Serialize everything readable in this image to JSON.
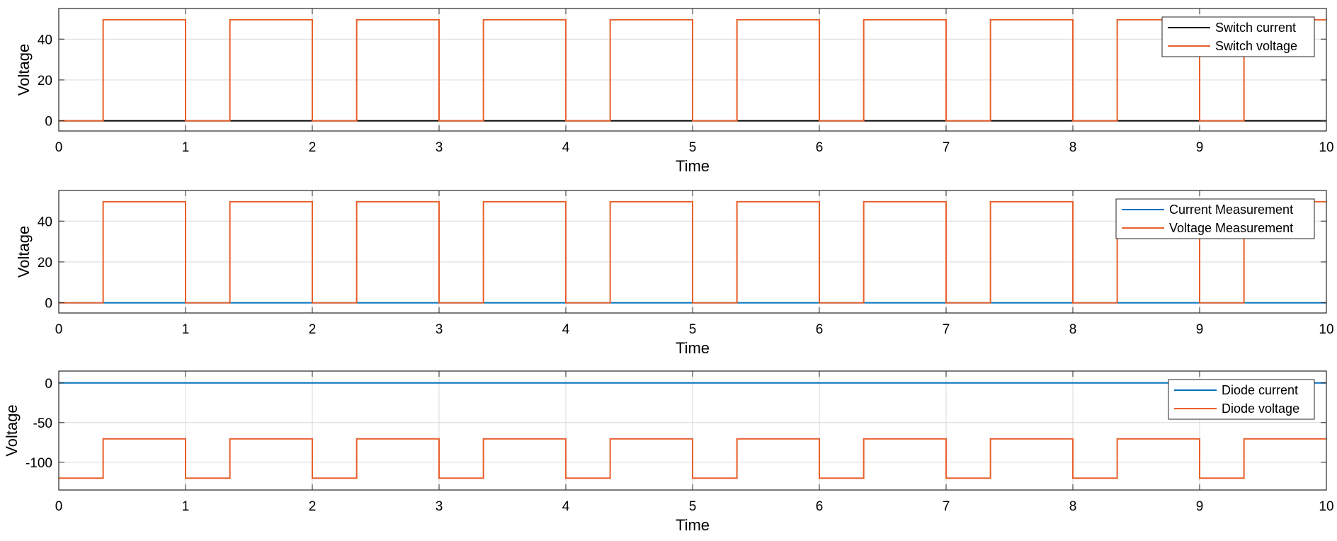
{
  "chart_data": [
    {
      "type": "line",
      "xlabel": "Time",
      "ylabel": "Voltage",
      "xlim": [
        0,
        10
      ],
      "ylim": [
        -5,
        55
      ],
      "x_ticks": [
        0,
        1,
        2,
        3,
        4,
        5,
        6,
        7,
        8,
        9,
        10
      ],
      "y_ticks": [
        0,
        20,
        40
      ],
      "grid": true,
      "legend_position": "top-right",
      "series": [
        {
          "name": "Switch current",
          "color": "#000000",
          "x": [
            0,
            10
          ],
          "y": [
            0,
            0
          ]
        },
        {
          "name": "Switch voltage",
          "color": "#e8602c",
          "x": [
            0,
            0.35,
            0.35,
            1,
            1,
            1.35,
            1.35,
            2,
            2,
            2.35,
            2.35,
            3,
            3,
            3.35,
            3.35,
            4,
            4,
            4.35,
            4.35,
            5,
            5,
            5.35,
            5.35,
            6,
            6,
            6.35,
            6.35,
            7,
            7,
            7.35,
            7.35,
            8,
            8,
            8.35,
            8.35,
            9,
            9,
            9.35,
            9.35,
            10
          ],
          "y": [
            0,
            0,
            49.5,
            49.5,
            0,
            0,
            49.5,
            49.5,
            0,
            0,
            49.5,
            49.5,
            0,
            0,
            49.5,
            49.5,
            0,
            0,
            49.5,
            49.5,
            0,
            0,
            49.5,
            49.5,
            0,
            0,
            49.5,
            49.5,
            0,
            0,
            49.5,
            49.5,
            0,
            0,
            49.5,
            49.5,
            0,
            0,
            49.5,
            49.5
          ]
        }
      ]
    },
    {
      "type": "line",
      "xlabel": "Time",
      "ylabel": "Voltage",
      "xlim": [
        0,
        10
      ],
      "ylim": [
        -5,
        55
      ],
      "x_ticks": [
        0,
        1,
        2,
        3,
        4,
        5,
        6,
        7,
        8,
        9,
        10
      ],
      "y_ticks": [
        0,
        20,
        40
      ],
      "grid": true,
      "legend_position": "top-right",
      "series": [
        {
          "name": "Current Measurement",
          "color": "#0072bd",
          "x": [
            0,
            10
          ],
          "y": [
            0,
            0
          ]
        },
        {
          "name": "Voltage Measurement",
          "color": "#e8602c",
          "x": [
            0,
            0.35,
            0.35,
            1,
            1,
            1.35,
            1.35,
            2,
            2,
            2.35,
            2.35,
            3,
            3,
            3.35,
            3.35,
            4,
            4,
            4.35,
            4.35,
            5,
            5,
            5.35,
            5.35,
            6,
            6,
            6.35,
            6.35,
            7,
            7,
            7.35,
            7.35,
            8,
            8,
            8.35,
            8.35,
            9,
            9,
            9.35,
            9.35,
            10
          ],
          "y": [
            0,
            0,
            49.5,
            49.5,
            0,
            0,
            49.5,
            49.5,
            0,
            0,
            49.5,
            49.5,
            0,
            0,
            49.5,
            49.5,
            0,
            0,
            49.5,
            49.5,
            0,
            0,
            49.5,
            49.5,
            0,
            0,
            49.5,
            49.5,
            0,
            0,
            49.5,
            49.5,
            0,
            0,
            49.5,
            49.5,
            0,
            0,
            49.5,
            49.5
          ]
        }
      ]
    },
    {
      "type": "line",
      "xlabel": "Time",
      "ylabel": "Voltage",
      "xlim": [
        0,
        10
      ],
      "ylim": [
        -135,
        15
      ],
      "x_ticks": [
        0,
        1,
        2,
        3,
        4,
        5,
        6,
        7,
        8,
        9,
        10
      ],
      "y_ticks": [
        0,
        -50,
        -100
      ],
      "grid": true,
      "legend_position": "top-right",
      "series": [
        {
          "name": "Diode current",
          "color": "#0072bd",
          "x": [
            0,
            10
          ],
          "y": [
            0,
            0
          ]
        },
        {
          "name": "Diode voltage",
          "color": "#e8602c",
          "x": [
            0,
            0.35,
            0.35,
            1,
            1,
            1.35,
            1.35,
            2,
            2,
            2.35,
            2.35,
            3,
            3,
            3.35,
            3.35,
            4,
            4,
            4.35,
            4.35,
            5,
            5,
            5.35,
            5.35,
            6,
            6,
            6.35,
            6.35,
            7,
            7,
            7.35,
            7.35,
            8,
            8,
            8.35,
            8.35,
            9,
            9,
            9.35,
            9.35,
            10
          ],
          "y": [
            -120,
            -120,
            -70.5,
            -70.5,
            -120,
            -120,
            -70.5,
            -70.5,
            -120,
            -120,
            -70.5,
            -70.5,
            -120,
            -120,
            -70.5,
            -70.5,
            -120,
            -120,
            -70.5,
            -70.5,
            -120,
            -120,
            -70.5,
            -70.5,
            -120,
            -120,
            -70.5,
            -70.5,
            -120,
            -120,
            -70.5,
            -70.5,
            -120,
            -120,
            -70.5,
            -70.5,
            -120,
            -120,
            -70.5,
            -70.5
          ]
        }
      ]
    }
  ]
}
